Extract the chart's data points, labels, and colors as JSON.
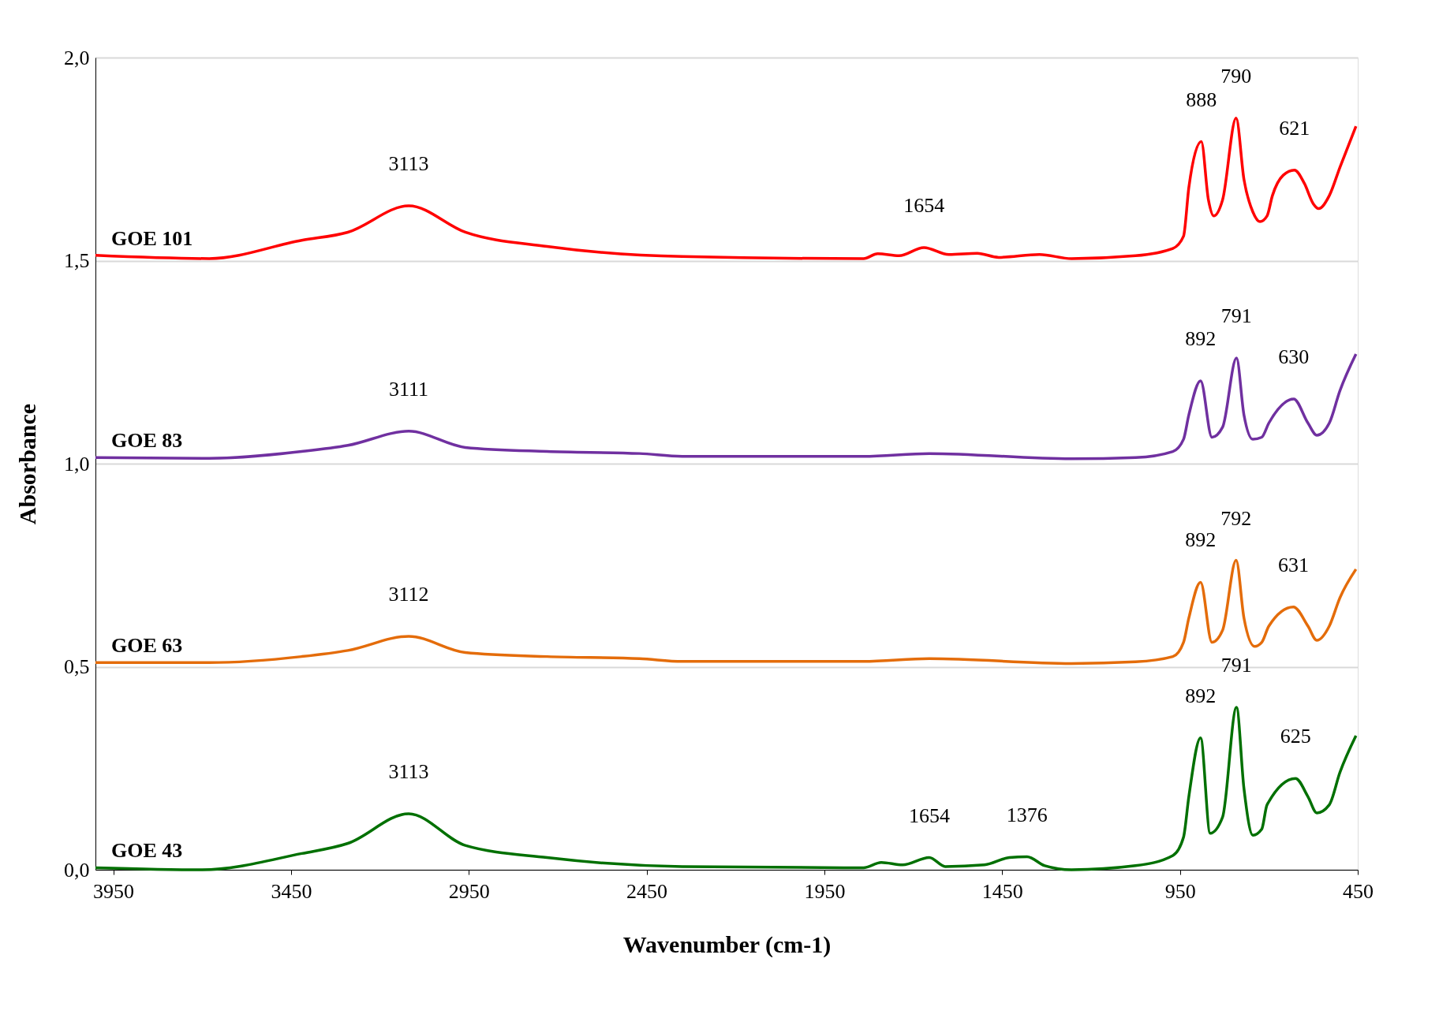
{
  "chart_data": {
    "type": "line",
    "xlabel": "Wavenumber (cm-1)",
    "ylabel": "Absorbance",
    "xlim": [
      4000,
      450
    ],
    "xticks": [
      3950,
      3450,
      2950,
      2450,
      1950,
      1450,
      950,
      450
    ],
    "ylim": [
      0,
      2.0
    ],
    "yticks": [
      {
        "value": 0,
        "label": "0,0"
      },
      {
        "value": 0.5,
        "label": "0,5"
      },
      {
        "value": 1.0,
        "label": "1,0"
      },
      {
        "value": 1.5,
        "label": "1,5"
      },
      {
        "value": 2.0,
        "label": "2,0"
      }
    ],
    "grid": "y",
    "legend": false,
    "marker": "none",
    "line_style": "solid",
    "series": [
      {
        "name": "GOE 101",
        "color": "#ff0000",
        "x": [
          4000,
          3680,
          3420,
          3290,
          3119,
          2960,
          2730,
          2350,
          1840,
          1800,
          1740,
          1670,
          1600,
          1520,
          1460,
          1345,
          1255,
          1075,
          970,
          940,
          925,
          890,
          870,
          855,
          830,
          792,
          770,
          745,
          725,
          705,
          690,
          660,
          628,
          600,
          575,
          560,
          530,
          500,
          455
        ],
        "values": [
          1.513,
          1.505,
          1.55,
          1.57,
          1.635,
          1.57,
          1.535,
          1.51,
          1.505,
          1.517,
          1.512,
          1.532,
          1.515,
          1.518,
          1.508,
          1.515,
          1.505,
          1.512,
          1.53,
          1.56,
          1.68,
          1.793,
          1.65,
          1.61,
          1.65,
          1.851,
          1.7,
          1.62,
          1.596,
          1.61,
          1.66,
          1.71,
          1.723,
          1.69,
          1.64,
          1.628,
          1.66,
          1.73,
          1.831
        ]
      },
      {
        "name": "GOE 83",
        "color": "#7030a0",
        "x": [
          4000,
          3680,
          3420,
          3290,
          3119,
          2960,
          2730,
          2470,
          2350,
          1840,
          1655,
          1255,
          1075,
          970,
          940,
          925,
          892,
          860,
          830,
          791,
          770,
          745,
          720,
          700,
          630,
          590,
          565,
          530,
          500,
          455
        ],
        "values": [
          1.015,
          1.013,
          1.03,
          1.045,
          1.08,
          1.04,
          1.03,
          1.025,
          1.018,
          1.018,
          1.025,
          1.012,
          1.015,
          1.03,
          1.06,
          1.12,
          1.204,
          1.065,
          1.09,
          1.26,
          1.12,
          1.06,
          1.065,
          1.1,
          1.159,
          1.1,
          1.07,
          1.1,
          1.18,
          1.27
        ]
      },
      {
        "name": "GOE 63",
        "color": "#e46c0a",
        "x": [
          4000,
          3680,
          3420,
          3290,
          3119,
          2960,
          2730,
          2470,
          2350,
          1840,
          1655,
          1255,
          1075,
          970,
          940,
          925,
          892,
          860,
          830,
          792,
          770,
          740,
          720,
          700,
          631,
          590,
          565,
          530,
          500,
          455
        ],
        "values": [
          0.51,
          0.51,
          0.525,
          0.54,
          0.575,
          0.535,
          0.525,
          0.52,
          0.513,
          0.513,
          0.52,
          0.508,
          0.512,
          0.525,
          0.56,
          0.62,
          0.708,
          0.56,
          0.59,
          0.762,
          0.62,
          0.55,
          0.56,
          0.6,
          0.647,
          0.6,
          0.565,
          0.6,
          0.67,
          0.74
        ]
      },
      {
        "name": "GOE 43",
        "color": "#007000",
        "x": [
          4000,
          3700,
          3420,
          3290,
          3119,
          2960,
          2730,
          2350,
          1840,
          1790,
          1730,
          1655,
          1610,
          1500,
          1430,
          1380,
          1330,
          1255,
          1075,
          970,
          940,
          925,
          892,
          865,
          830,
          791,
          770,
          745,
          720,
          705,
          625,
          590,
          565,
          530,
          500,
          455
        ],
        "values": [
          0.005,
          0.0,
          0.04,
          0.065,
          0.138,
          0.06,
          0.03,
          0.008,
          0.005,
          0.018,
          0.012,
          0.03,
          0.008,
          0.012,
          0.03,
          0.032,
          0.01,
          0.0,
          0.01,
          0.035,
          0.08,
          0.18,
          0.325,
          0.09,
          0.13,
          0.4,
          0.2,
          0.085,
          0.1,
          0.16,
          0.225,
          0.18,
          0.14,
          0.16,
          0.24,
          0.33
        ]
      }
    ],
    "annotations": [
      {
        "text": "3113",
        "x": 3119,
        "y": 1.635
      },
      {
        "text": "1654",
        "x": 1670,
        "y": 1.532
      },
      {
        "text": "888",
        "x": 890,
        "y": 1.793
      },
      {
        "text": "790",
        "x": 792,
        "y": 1.851
      },
      {
        "text": "621",
        "x": 628,
        "y": 1.723
      },
      {
        "text": "3111",
        "x": 3119,
        "y": 1.08
      },
      {
        "text": "892",
        "x": 892,
        "y": 1.204
      },
      {
        "text": "791",
        "x": 791,
        "y": 1.26
      },
      {
        "text": "630",
        "x": 630,
        "y": 1.159
      },
      {
        "text": "3112",
        "x": 3119,
        "y": 0.575
      },
      {
        "text": "892",
        "x": 892,
        "y": 0.708
      },
      {
        "text": "792",
        "x": 792,
        "y": 0.762
      },
      {
        "text": "631",
        "x": 631,
        "y": 0.647
      },
      {
        "text": "3113",
        "x": 3119,
        "y": 0.138
      },
      {
        "text": "1654",
        "x": 1655,
        "y": 0.03
      },
      {
        "text": "1376",
        "x": 1380,
        "y": 0.032
      },
      {
        "text": "892",
        "x": 892,
        "y": 0.325
      },
      {
        "text": "791",
        "x": 791,
        "y": 0.4
      },
      {
        "text": "625",
        "x": 625,
        "y": 0.225
      }
    ]
  }
}
